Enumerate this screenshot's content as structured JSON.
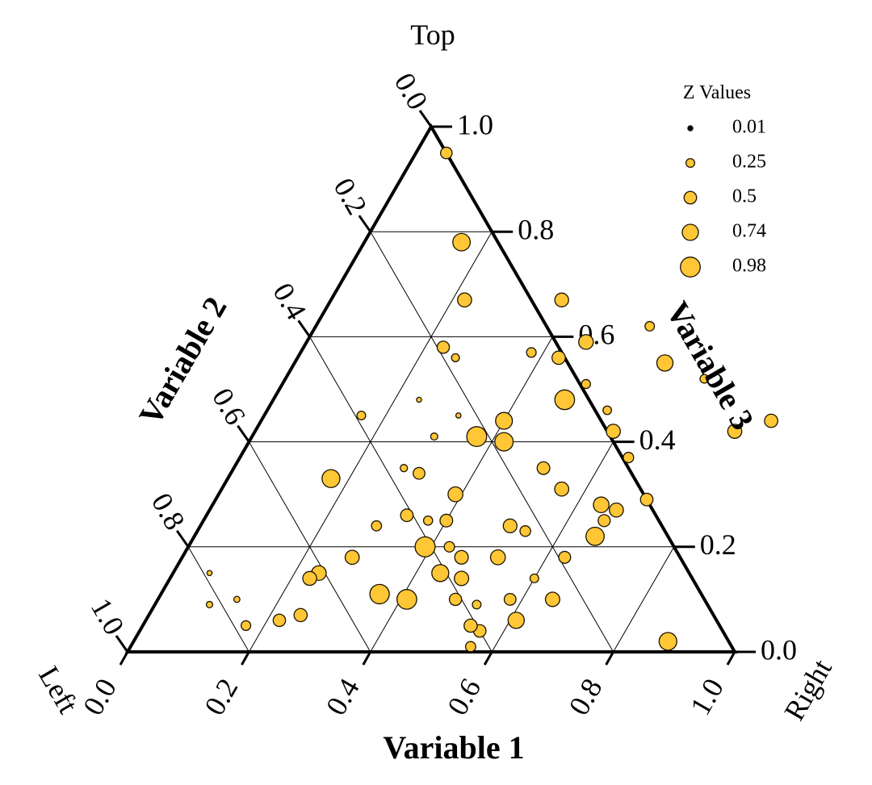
{
  "chart_data": {
    "type": "scatter",
    "subtype": "ternary-bubble",
    "vertex_labels": {
      "top": "Top",
      "left": "Left",
      "right": "Right"
    },
    "axis_titles": {
      "bottom": "Variable 1",
      "left": "Variable 2",
      "right": "Variable 3"
    },
    "ticks": {
      "bottom": [
        "0.0",
        "0.2",
        "0.4",
        "0.6",
        "0.8",
        "1.0"
      ],
      "left": [
        "0.0",
        "0.2",
        "0.4",
        "0.6",
        "0.8",
        "1.0"
      ],
      "right": [
        "0.0",
        "0.2",
        "0.4",
        "0.6",
        "0.8",
        "1.0"
      ]
    },
    "grid": true,
    "marker_color": "#FFC636",
    "marker_edge_color": "#1a1200",
    "legend": {
      "title": "Z Values",
      "position": "top-right",
      "entries": [
        {
          "label": "0.01",
          "z": 0.01
        },
        {
          "label": "0.25",
          "z": 0.25
        },
        {
          "label": "0.5",
          "z": 0.5
        },
        {
          "label": "0.74",
          "z": 0.74
        },
        {
          "label": "0.98",
          "z": 0.98
        }
      ]
    },
    "point_columns": [
      "variable_1",
      "variable_3",
      "z"
    ],
    "points": [
      [
        0.05,
        0.95,
        0.44
      ],
      [
        0.16,
        0.78,
        0.82
      ],
      [
        0.22,
        0.67,
        0.6
      ],
      [
        0.17,
        0.33,
        0.85
      ],
      [
        0.38,
        0.57,
        0.31
      ],
      [
        0.43,
        0.56,
        0.55
      ],
      [
        0.46,
        0.59,
        0.64
      ],
      [
        0.5,
        0.51,
        0.27
      ],
      [
        0.48,
        0.48,
        0.97
      ],
      [
        0.56,
        0.46,
        0.24
      ],
      [
        0.59,
        0.42,
        0.6
      ],
      [
        0.61,
        0.55,
        0.74
      ],
      [
        0.69,
        0.52,
        0.25
      ],
      [
        0.31,
        0.34,
        0.45
      ],
      [
        0.4,
        0.44,
        0.78
      ],
      [
        0.37,
        0.41,
        0.98
      ],
      [
        0.33,
        0.26,
        0.5
      ],
      [
        0.37,
        0.25,
        0.28
      ],
      [
        0.16,
        0.45,
        0.25
      ],
      [
        0.29,
        0.24,
        0.34
      ],
      [
        0.39,
        0.2,
        0.99
      ],
      [
        0.28,
        0.18,
        0.6
      ],
      [
        0.24,
        0.15,
        0.64
      ],
      [
        0.23,
        0.14,
        0.59
      ],
      [
        0.13,
        0.1,
        0.08
      ],
      [
        0.39,
        0.3,
        0.65
      ],
      [
        0.42,
        0.4,
        0.88
      ],
      [
        0.51,
        0.35,
        0.51
      ],
      [
        0.56,
        0.31,
        0.6
      ],
      [
        0.64,
        0.37,
        0.36
      ],
      [
        0.54,
        0.23,
        0.38
      ],
      [
        0.46,
        0.18,
        0.57
      ],
      [
        0.48,
        0.14,
        0.62
      ],
      [
        0.44,
        0.15,
        0.79
      ],
      [
        0.43,
        0.2,
        0.36
      ],
      [
        0.4,
        0.25,
        0.51
      ],
      [
        0.51,
        0.24,
        0.58
      ],
      [
        0.52,
        0.18,
        0.65
      ],
      [
        0.36,
        0.11,
        0.95
      ],
      [
        0.41,
        0.1,
        0.97
      ],
      [
        0.49,
        0.1,
        0.48
      ],
      [
        0.58,
        0.1,
        0.45
      ],
      [
        0.56,
        0.04,
        0.5
      ],
      [
        0.54,
        0.05,
        0.54
      ],
      [
        0.53,
        0.09,
        0.25
      ],
      [
        0.56,
        0.01,
        0.35
      ],
      [
        0.61,
        0.06,
        0.74
      ],
      [
        0.65,
        0.1,
        0.62
      ],
      [
        0.66,
        0.25,
        0.47
      ],
      [
        0.66,
        0.22,
        0.87
      ],
      [
        0.63,
        0.18,
        0.46
      ],
      [
        0.6,
        0.14,
        0.25
      ],
      [
        0.64,
        0.28,
        0.7
      ],
      [
        0.67,
        0.27,
        0.6
      ],
      [
        0.71,
        0.29,
        0.5
      ],
      [
        0.25,
        0.07,
        0.54
      ],
      [
        0.22,
        0.06,
        0.49
      ],
      [
        0.17,
        0.05,
        0.31
      ],
      [
        0.09,
        0.09,
        0.1
      ],
      [
        0.26,
        0.56,
        0.2
      ],
      [
        0.23,
        0.58,
        0.48
      ],
      [
        0.38,
        0.67,
        0.58
      ],
      [
        0.55,
        0.62,
        0.3
      ],
      [
        0.88,
        0.02,
        0.84
      ],
      [
        0.28,
        0.35,
        0.16
      ],
      [
        0.24,
        0.48,
        0.01
      ],
      [
        0.79,
        0.42,
        0.6
      ],
      [
        0.84,
        0.44,
        0.55
      ],
      [
        0.32,
        0.45,
        0.02
      ],
      [
        0.06,
        0.15,
        0.02
      ],
      [
        0.3,
        0.41,
        0.15
      ]
    ]
  }
}
